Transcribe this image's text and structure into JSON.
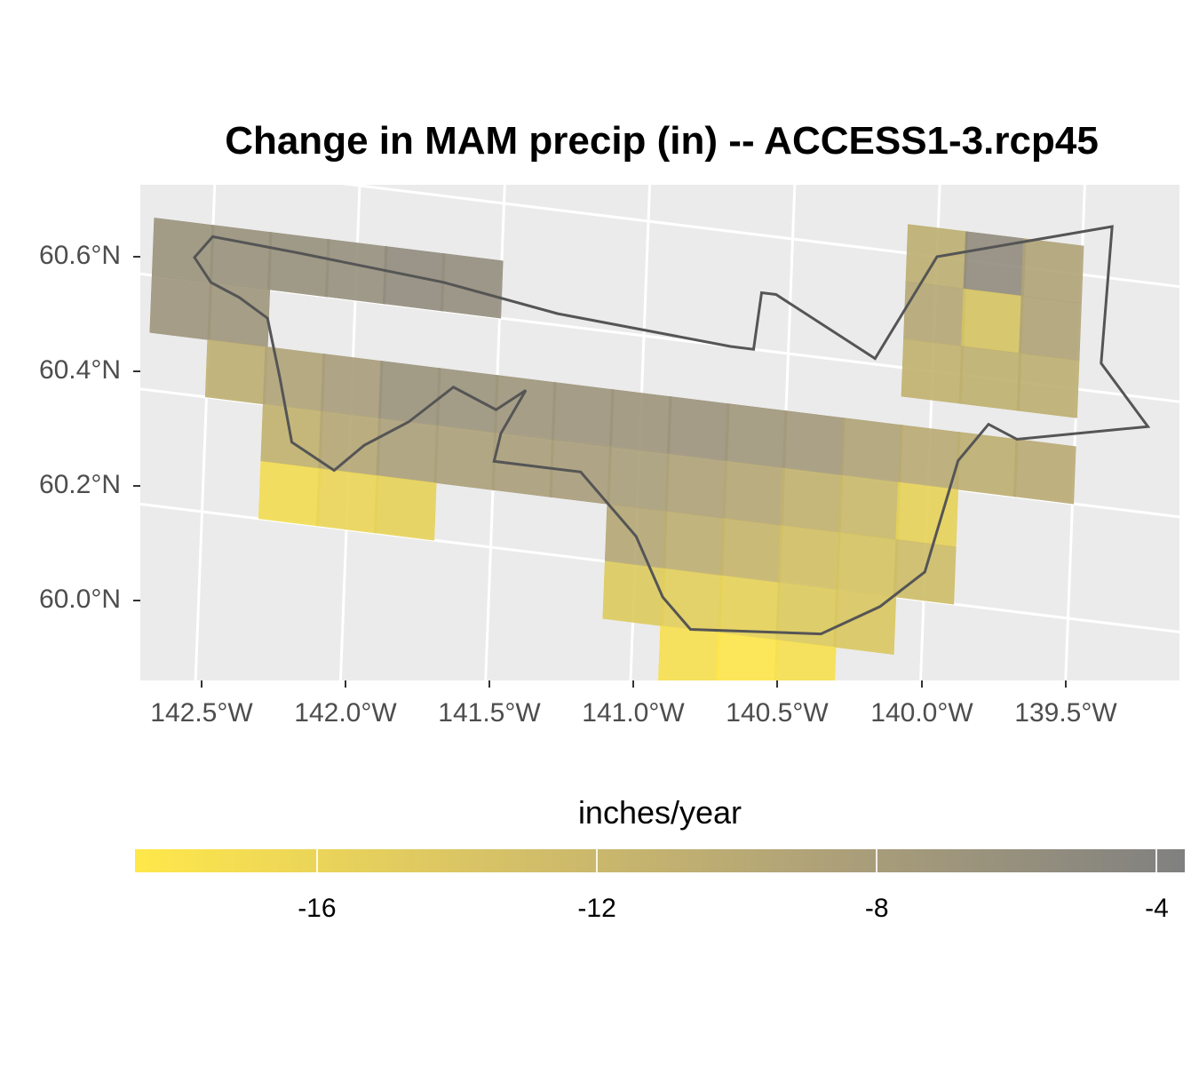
{
  "title": "Change in MAM precip (in) -- ACCESS1-3.rcp45",
  "y_axis_ticks": [
    "60.6°N",
    "60.4°N",
    "60.2°N",
    "60.0°N"
  ],
  "x_axis_ticks": [
    "142.5°W",
    "142.0°W",
    "141.5°W",
    "141.0°W",
    "140.5°W",
    "140.0°W",
    "139.5°W"
  ],
  "legend": {
    "title": "inches/year",
    "ticks": [
      "-16",
      "-12",
      "-8",
      "-4"
    ],
    "tick_values": [
      -16,
      -12,
      -8,
      -4
    ],
    "range": [
      -18.6,
      -3.6
    ],
    "low_color": "#ffe84a",
    "high_color": "#808080"
  },
  "colors": {
    "panel": "#ebebeb",
    "grid": "#ffffff",
    "boundary": "#555555"
  },
  "chart_data": {
    "type": "heatmap",
    "title": "Change in MAM precip (in) -- ACCESS1-3.rcp45",
    "xlim": [
      -142.7,
      -139.1
    ],
    "ylim": [
      59.85,
      60.73
    ],
    "value_unit": "inches/year",
    "grid_dlon": 0.2083,
    "grid_dlat": 0.1,
    "cells": [
      [
        -142.6,
        60.45,
        -6.5
      ],
      [
        -142.4,
        60.45,
        -6.3
      ],
      [
        -142.2,
        60.45,
        -6.2
      ],
      [
        -142.0,
        60.45,
        -6.0
      ],
      [
        -141.8,
        60.45,
        -5.5
      ],
      [
        -141.6,
        60.45,
        -5.8
      ],
      [
        -142.6,
        60.35,
        -6.8
      ],
      [
        -142.4,
        60.35,
        -7.0
      ],
      [
        -142.4,
        60.25,
        -10.5
      ],
      [
        -142.2,
        60.25,
        -9.0
      ],
      [
        -142.0,
        60.25,
        -8.0
      ],
      [
        -141.8,
        60.25,
        -6.5
      ],
      [
        -141.6,
        60.25,
        -6.6
      ],
      [
        -141.4,
        60.25,
        -7.0
      ],
      [
        -141.2,
        60.25,
        -6.8
      ],
      [
        -141.0,
        60.25,
        -6.9
      ],
      [
        -140.8,
        60.25,
        -6.7
      ],
      [
        -140.6,
        60.25,
        -7.2
      ],
      [
        -140.4,
        60.25,
        -7.5
      ],
      [
        -140.2,
        60.25,
        -9.0
      ],
      [
        -140.0,
        60.25,
        -10.0
      ],
      [
        -139.8,
        60.25,
        -10.5
      ],
      [
        -139.6,
        60.25,
        -10.0
      ],
      [
        -142.2,
        60.15,
        -11.0
      ],
      [
        -142.0,
        60.15,
        -9.5
      ],
      [
        -141.8,
        60.15,
        -8.5
      ],
      [
        -141.6,
        60.15,
        -8.5
      ],
      [
        -141.4,
        60.15,
        -8.3
      ],
      [
        -141.2,
        60.15,
        -8.0
      ],
      [
        -141.0,
        60.15,
        -8.2
      ],
      [
        -140.8,
        60.15,
        -8.8
      ],
      [
        -140.6,
        60.15,
        -9.5
      ],
      [
        -140.4,
        60.15,
        -11.0
      ],
      [
        -140.2,
        60.15,
        -12.0
      ],
      [
        -140.0,
        60.15,
        -15.5
      ],
      [
        -142.2,
        60.05,
        -17.0
      ],
      [
        -142.0,
        60.05,
        -16.0
      ],
      [
        -141.8,
        60.05,
        -15.5
      ],
      [
        -141.0,
        60.05,
        -9.5
      ],
      [
        -140.8,
        60.05,
        -10.5
      ],
      [
        -140.6,
        60.05,
        -11.5
      ],
      [
        -140.4,
        60.05,
        -13.0
      ],
      [
        -140.2,
        60.05,
        -13.5
      ],
      [
        -140.0,
        60.05,
        -12.5
      ],
      [
        -141.0,
        59.95,
        -14.5
      ],
      [
        -140.8,
        59.95,
        -15.0
      ],
      [
        -140.6,
        59.95,
        -15.5
      ],
      [
        -140.4,
        59.95,
        -14.5
      ],
      [
        -140.2,
        59.95,
        -14.0
      ],
      [
        -140.8,
        59.85,
        -17.5
      ],
      [
        -140.6,
        59.85,
        -18.5
      ],
      [
        -140.4,
        59.85,
        -17.5
      ],
      [
        -140.0,
        60.6,
        -10.5
      ],
      [
        -139.8,
        60.6,
        -5.5
      ],
      [
        -139.6,
        60.6,
        -9.0
      ],
      [
        -140.0,
        60.5,
        -9.5
      ],
      [
        -139.8,
        60.5,
        -13.5
      ],
      [
        -139.6,
        60.5,
        -9.0
      ],
      [
        -140.0,
        60.4,
        -11.0
      ],
      [
        -139.8,
        60.4,
        -10.8
      ],
      [
        -139.6,
        60.4,
        -10.5
      ]
    ],
    "boundary": [
      [
        -142.56,
        60.44
      ],
      [
        -142.5,
        60.48
      ],
      [
        -142.2,
        60.47
      ],
      [
        -141.7,
        60.45
      ],
      [
        -141.3,
        60.42
      ],
      [
        -140.7,
        60.4
      ],
      [
        -140.62,
        60.4
      ],
      [
        -140.6,
        60.5
      ],
      [
        -140.55,
        60.5
      ],
      [
        -140.2,
        60.41
      ],
      [
        -140.0,
        60.6
      ],
      [
        -139.4,
        60.69
      ],
      [
        -139.42,
        60.45
      ],
      [
        -139.25,
        60.35
      ],
      [
        -139.7,
        60.3
      ],
      [
        -139.8,
        60.32
      ],
      [
        -139.9,
        60.25
      ],
      [
        -140.0,
        60.05
      ],
      [
        -140.15,
        59.98
      ],
      [
        -140.35,
        59.92
      ],
      [
        -140.8,
        59.9
      ],
      [
        -140.9,
        59.95
      ],
      [
        -141.0,
        60.05
      ],
      [
        -141.2,
        60.15
      ],
      [
        -141.5,
        60.15
      ],
      [
        -141.48,
        60.2
      ],
      [
        -141.4,
        60.28
      ],
      [
        -141.5,
        60.24
      ],
      [
        -141.65,
        60.27
      ],
      [
        -141.8,
        60.2
      ],
      [
        -141.95,
        60.15
      ],
      [
        -142.05,
        60.1
      ],
      [
        -142.2,
        60.14
      ],
      [
        -142.25,
        60.25
      ],
      [
        -142.3,
        60.35
      ],
      [
        -142.4,
        60.38
      ],
      [
        -142.5,
        60.4
      ],
      [
        -142.56,
        60.44
      ]
    ]
  }
}
